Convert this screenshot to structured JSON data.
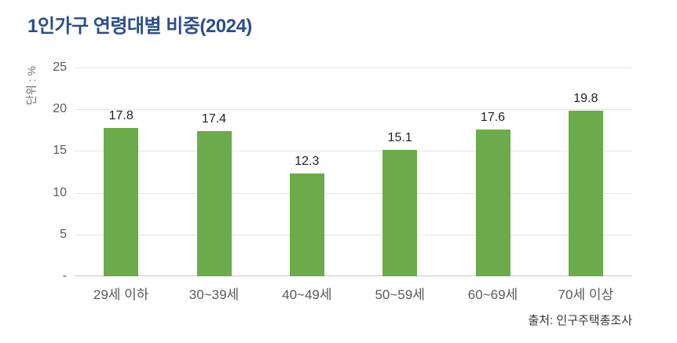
{
  "title": "1인가구 연령대별 비중(2024)",
  "y_axis": {
    "unit_label": "단위 : %"
  },
  "source": "출처: 인구주택총조사",
  "colors": {
    "bar": "#6cab4b",
    "title": "#2c4d8c",
    "gridline": "#e4e4e4",
    "baseline": "#c7c7c7",
    "axis_text": "#595959",
    "value_text": "#1f1f1f"
  },
  "chart_data": {
    "type": "bar",
    "title": "1인가구 연령대별 비중(2024)",
    "categories": [
      "29세 이하",
      "30~39세",
      "40~49세",
      "50~59세",
      "60~69세",
      "70세 이상"
    ],
    "values": [
      17.8,
      17.4,
      12.3,
      15.1,
      17.6,
      19.8
    ],
    "xlabel": "",
    "ylabel": "단위 : %",
    "ylim": [
      0,
      25
    ],
    "yticks": [
      0,
      5,
      10,
      15,
      20,
      25
    ],
    "ytick_labels": [
      "-",
      "5",
      "10",
      "15",
      "20",
      "25"
    ],
    "grid": "horizontal",
    "legend": "none",
    "value_labels": true,
    "source": "출처: 인구주택총조사"
  }
}
